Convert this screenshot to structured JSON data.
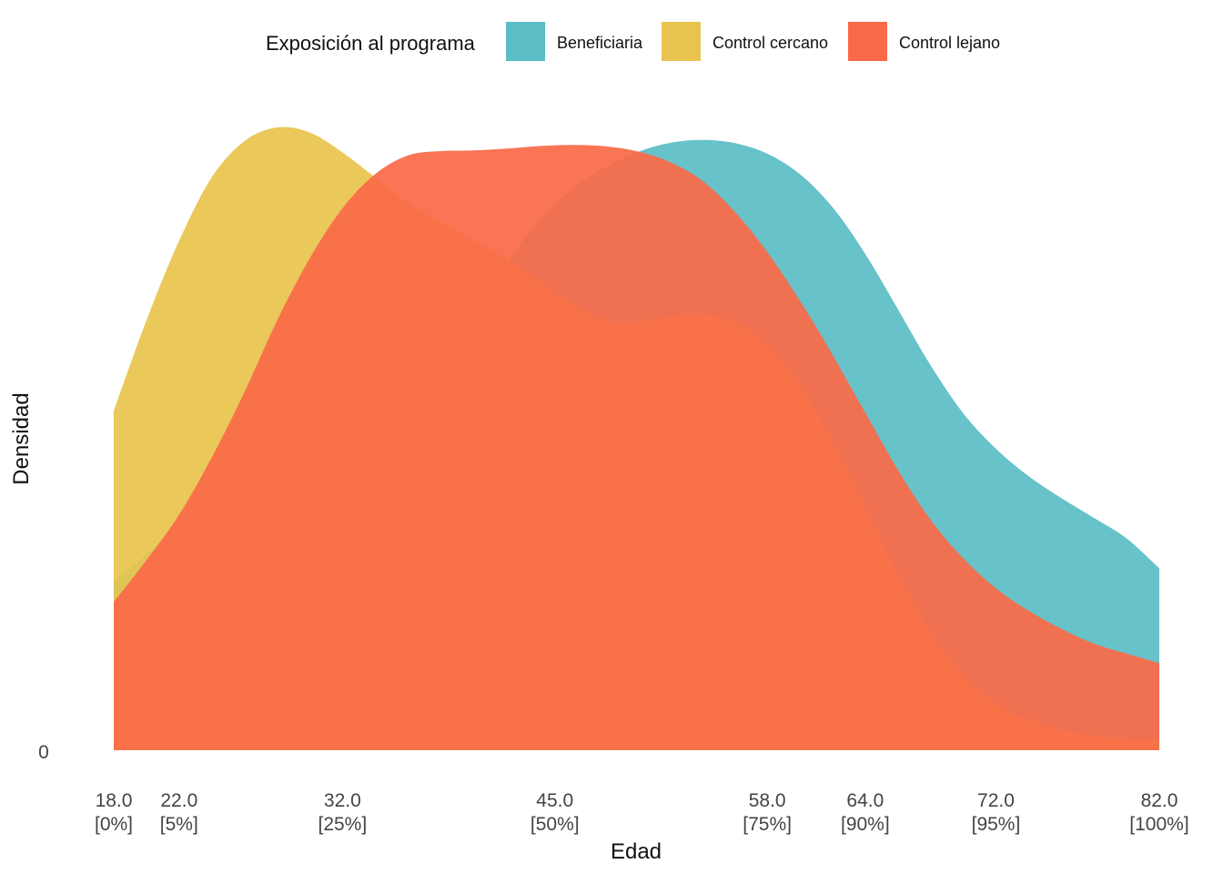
{
  "chart_data": {
    "type": "area",
    "subtype": "density",
    "xlabel": "Edad",
    "ylabel": "Densidad",
    "xlim": [
      18,
      82
    ],
    "y_ticks": [
      "0"
    ],
    "legend": {
      "title": "Exposición al programa",
      "position": "top"
    },
    "x_ticks": [
      {
        "value": 18,
        "label": "18.0",
        "sublabel": "[0%]"
      },
      {
        "value": 22,
        "label": "22.0",
        "sublabel": "[5%]"
      },
      {
        "value": 32,
        "label": "32.0",
        "sublabel": "[25%]"
      },
      {
        "value": 45,
        "label": "45.0",
        "sublabel": "[50%]"
      },
      {
        "value": 58,
        "label": "58.0",
        "sublabel": "[75%]"
      },
      {
        "value": 64,
        "label": "64.0",
        "sublabel": "[90%]"
      },
      {
        "value": 72,
        "label": "72.0",
        "sublabel": "[95%]"
      },
      {
        "value": 82,
        "label": "82.0",
        "sublabel": "[100%]"
      }
    ],
    "grid": false,
    "series": [
      {
        "name": "Beneficiaria",
        "color": "#5BBDC6",
        "x": [
          18,
          20,
          22,
          24,
          26,
          28,
          30,
          32,
          34,
          36,
          38,
          40,
          42,
          44,
          46,
          48,
          50,
          52,
          54,
          56,
          58,
          60,
          62,
          64,
          66,
          68,
          70,
          72,
          74,
          76,
          78,
          80,
          82
        ],
        "y": [
          0.272,
          0.314,
          0.364,
          0.408,
          0.436,
          0.454,
          0.467,
          0.481,
          0.504,
          0.546,
          0.612,
          0.695,
          0.78,
          0.849,
          0.9,
          0.935,
          0.96,
          0.975,
          0.98,
          0.975,
          0.958,
          0.925,
          0.872,
          0.797,
          0.708,
          0.618,
          0.541,
          0.484,
          0.44,
          0.405,
          0.373,
          0.34,
          0.292
        ]
      },
      {
        "name": "Control cercano",
        "color": "#E8C44E",
        "x": [
          18,
          20,
          22,
          24,
          26,
          28,
          30,
          32,
          34,
          36,
          38,
          40,
          42,
          44,
          46,
          48,
          50,
          52,
          54,
          56,
          58,
          60,
          62,
          64,
          66,
          68,
          70,
          72,
          74,
          76,
          78,
          80,
          82
        ],
        "y": [
          0.545,
          0.69,
          0.818,
          0.92,
          0.978,
          1.0,
          0.992,
          0.96,
          0.92,
          0.88,
          0.848,
          0.82,
          0.79,
          0.755,
          0.718,
          0.69,
          0.687,
          0.697,
          0.7,
          0.687,
          0.652,
          0.587,
          0.495,
          0.39,
          0.283,
          0.19,
          0.12,
          0.076,
          0.049,
          0.033,
          0.023,
          0.018,
          0.016
        ]
      },
      {
        "name": "Control lejano",
        "color": "#FA6A48",
        "x": [
          18,
          20,
          22,
          24,
          26,
          28,
          30,
          32,
          34,
          36,
          38,
          40,
          42,
          44,
          46,
          48,
          50,
          52,
          54,
          56,
          58,
          60,
          62,
          64,
          66,
          68,
          70,
          72,
          74,
          76,
          78,
          80,
          82
        ],
        "y": [
          0.238,
          0.305,
          0.378,
          0.47,
          0.575,
          0.69,
          0.79,
          0.87,
          0.925,
          0.955,
          0.962,
          0.963,
          0.966,
          0.97,
          0.972,
          0.97,
          0.962,
          0.945,
          0.915,
          0.865,
          0.8,
          0.722,
          0.635,
          0.542,
          0.45,
          0.37,
          0.308,
          0.26,
          0.224,
          0.195,
          0.171,
          0.155,
          0.14
        ]
      }
    ]
  }
}
